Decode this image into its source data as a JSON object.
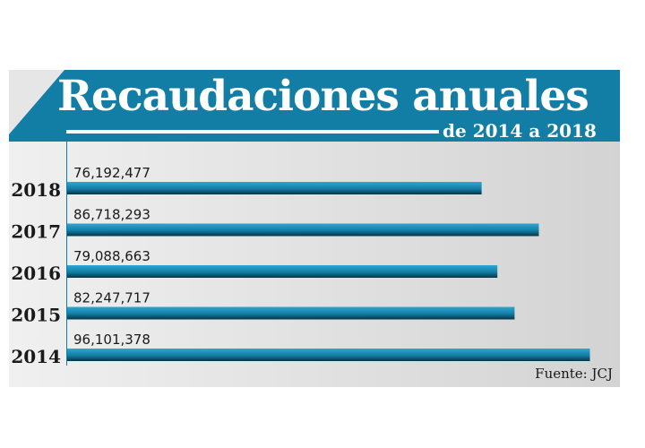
{
  "chart_data": {
    "type": "bar",
    "orientation": "horizontal",
    "title": "Recaudaciones anuales",
    "subtitle": "de 2014 a 2018",
    "categories": [
      "2018",
      "2017",
      "2016",
      "2015",
      "2014"
    ],
    "values": [
      76192477,
      86718293,
      79088663,
      82247717,
      96101378
    ],
    "value_labels": [
      "76,192,477",
      "86,718,293",
      "79,088,663",
      "82,247,717",
      "96,101,378"
    ],
    "xlim": [
      0,
      97500000
    ],
    "grid": false,
    "legend": "none",
    "source": "Fuente: JCJ",
    "colors": {
      "header": "#137ea5",
      "bar_top": "#2fa6d3",
      "bar_mid": "#137ea5",
      "bar_bottom": "#063446"
    }
  }
}
